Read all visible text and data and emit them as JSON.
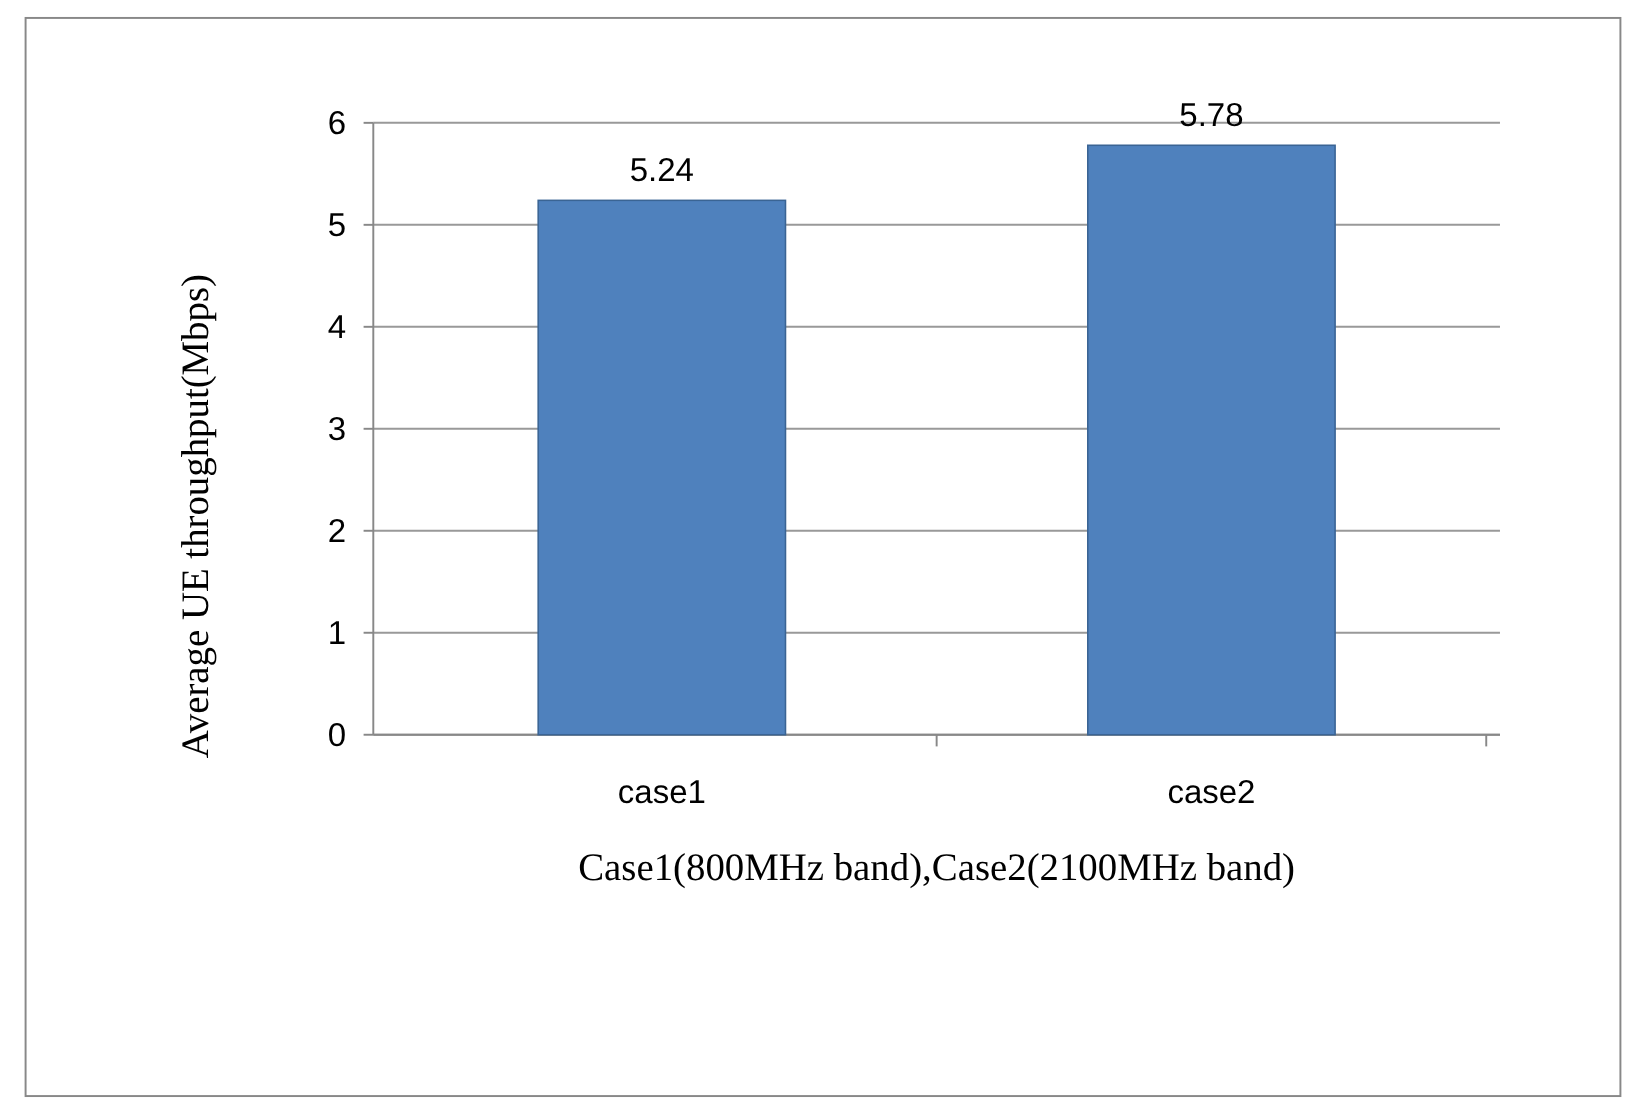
{
  "chart_data": {
    "type": "bar",
    "categories": [
      "case1",
      "case2"
    ],
    "values": [
      5.24,
      5.78
    ],
    "color": "#4f81bd",
    "data_labels": true,
    "ylim": [
      0,
      6
    ],
    "yticks": [
      0,
      1,
      2,
      3,
      4,
      5,
      6
    ],
    "grid": "y",
    "xlabel": "Case1(800MHz band),Case2(2100MHz band)",
    "ylabel": "Average  UE throughput(Mbps)"
  }
}
